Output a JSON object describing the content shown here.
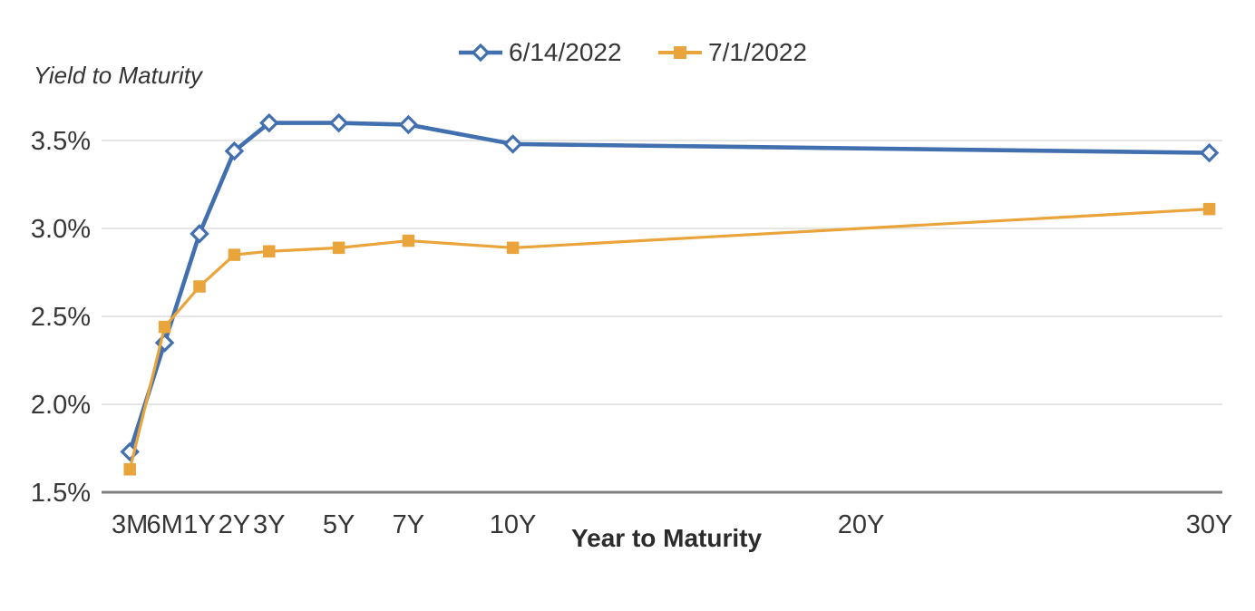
{
  "chart_data": {
    "type": "line",
    "title": "",
    "ylabel": "Yield to Maturity",
    "xlabel": "Year to Maturity",
    "legend_position": "top-center",
    "grid": "horizontal-only",
    "colors": {
      "series1": "#4270AF",
      "series2": "#EAA43C",
      "gridline": "#E5E5E5",
      "axis_line": "#7F7F7F",
      "text": "#363636"
    },
    "y_axis": {
      "min": 1.5,
      "max": 3.7,
      "ticks": [
        {
          "label": "3.5%",
          "value": 3.5
        },
        {
          "label": "3.0%",
          "value": 3.0
        },
        {
          "label": "2.5%",
          "value": 2.5
        },
        {
          "label": "2.0%",
          "value": 2.0
        },
        {
          "label": "1.5%",
          "value": 1.5
        }
      ]
    },
    "x_axis": {
      "ticks": [
        {
          "label": "3M",
          "u": -1
        },
        {
          "label": "6M",
          "u": 0
        },
        {
          "label": "1Y",
          "u": 1
        },
        {
          "label": "2Y",
          "u": 2
        },
        {
          "label": "3Y",
          "u": 3
        },
        {
          "label": "5Y",
          "u": 5
        },
        {
          "label": "7Y",
          "u": 7
        },
        {
          "label": "10Y",
          "u": 10
        },
        {
          "label": "20Y",
          "u": 20
        },
        {
          "label": "30Y",
          "u": 30
        }
      ]
    },
    "categories": [
      "3M",
      "6M",
      "1Y",
      "2Y",
      "3Y",
      "5Y",
      "7Y",
      "10Y",
      "30Y"
    ],
    "series": [
      {
        "name": "6/14/2022",
        "marker": "diamond-open",
        "color": "#4270AF",
        "line_width": 4.6,
        "values": [
          1.73,
          2.35,
          2.97,
          3.44,
          3.6,
          3.6,
          3.59,
          3.48,
          3.43
        ]
      },
      {
        "name": "7/1/2022",
        "marker": "square-filled",
        "color": "#EAA43C",
        "line_width": 3.2,
        "values": [
          1.63,
          2.44,
          2.67,
          2.85,
          2.87,
          2.89,
          2.93,
          2.89,
          3.11
        ]
      }
    ]
  }
}
